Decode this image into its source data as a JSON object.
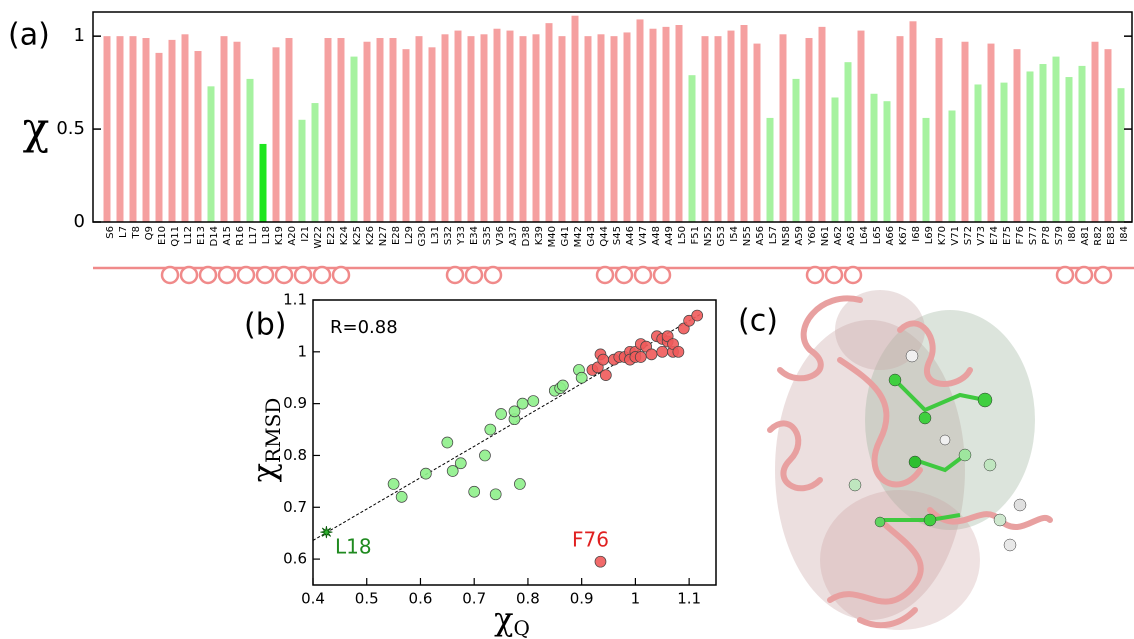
{
  "panels": [
    "(a)",
    "(b)",
    "(c)"
  ],
  "chart_data": [
    {
      "type": "bar",
      "y_label": "χ",
      "categories": [
        "S6",
        "L7",
        "T8",
        "Q9",
        "E10",
        "Q11",
        "L12",
        "E13",
        "D14",
        "A15",
        "R16",
        "L17",
        "L18",
        "K19",
        "A20",
        "I21",
        "W22",
        "E23",
        "K24",
        "K25",
        "K26",
        "N27",
        "E28",
        "L29",
        "G30",
        "L31",
        "S32",
        "Y33",
        "E34",
        "S35",
        "V36",
        "A37",
        "D38",
        "K39",
        "M40",
        "G41",
        "M42",
        "G43",
        "Q44",
        "S45",
        "A46",
        "V47",
        "A48",
        "A49",
        "L50",
        "F51",
        "N52",
        "G53",
        "I54",
        "N55",
        "A56",
        "L57",
        "N58",
        "A59",
        "Y60",
        "N61",
        "A62",
        "A63",
        "L64",
        "L65",
        "A66",
        "K67",
        "I68",
        "L69",
        "K70",
        "V71",
        "S72",
        "V73",
        "E74",
        "E75",
        "F76",
        "S77",
        "P78",
        "S79",
        "I80",
        "A81",
        "R82",
        "E83",
        "I84"
      ],
      "values": [
        1.0,
        1.0,
        1.0,
        0.99,
        0.91,
        0.98,
        1.01,
        0.92,
        0.73,
        1.0,
        0.97,
        0.77,
        0.42,
        0.94,
        0.99,
        0.55,
        0.64,
        0.99,
        0.99,
        0.89,
        0.97,
        0.99,
        0.99,
        0.93,
        1.0,
        0.94,
        1.01,
        1.03,
        1.0,
        1.01,
        1.04,
        1.03,
        1.0,
        1.01,
        1.07,
        1.0,
        1.11,
        1.0,
        1.01,
        1.0,
        1.02,
        1.09,
        1.04,
        1.05,
        1.06,
        0.79,
        1.0,
        1.0,
        1.03,
        1.06,
        0.96,
        0.56,
        1.01,
        0.77,
        0.99,
        1.05,
        0.67,
        0.86,
        1.03,
        0.69,
        0.65,
        1.0,
        1.08,
        0.56,
        0.99,
        0.6,
        0.97,
        0.74,
        0.96,
        0.75,
        0.93,
        0.81,
        0.85,
        0.89,
        0.78,
        0.84,
        0.97,
        0.93,
        0.72
      ],
      "colors": [
        "#f5a0a0",
        "#f5a0a0",
        "#f5a0a0",
        "#f5a0a0",
        "#f5a0a0",
        "#f5a0a0",
        "#f5a0a0",
        "#f5a0a0",
        "#a6f2a0",
        "#f5a0a0",
        "#f5a0a0",
        "#a6f2a0",
        "#1ee61e",
        "#f5a0a0",
        "#f5a0a0",
        "#a6f2a0",
        "#a6f2a0",
        "#f5a0a0",
        "#f5a0a0",
        "#a6f2a0",
        "#f5a0a0",
        "#f5a0a0",
        "#f5a0a0",
        "#f5a0a0",
        "#f5a0a0",
        "#f5a0a0",
        "#f5a0a0",
        "#f5a0a0",
        "#f5a0a0",
        "#f5a0a0",
        "#f5a0a0",
        "#f5a0a0",
        "#f5a0a0",
        "#f5a0a0",
        "#f5a0a0",
        "#f5a0a0",
        "#f5a0a0",
        "#f5a0a0",
        "#f5a0a0",
        "#f5a0a0",
        "#f5a0a0",
        "#f5a0a0",
        "#f5a0a0",
        "#f5a0a0",
        "#f5a0a0",
        "#a6f2a0",
        "#f5a0a0",
        "#f5a0a0",
        "#f5a0a0",
        "#f5a0a0",
        "#f5a0a0",
        "#a6f2a0",
        "#f5a0a0",
        "#a6f2a0",
        "#f5a0a0",
        "#f5a0a0",
        "#a6f2a0",
        "#a6f2a0",
        "#f5a0a0",
        "#a6f2a0",
        "#a6f2a0",
        "#f5a0a0",
        "#f5a0a0",
        "#a6f2a0",
        "#f5a0a0",
        "#a6f2a0",
        "#f5a0a0",
        "#a6f2a0",
        "#f5a0a0",
        "#a6f2a0",
        "#f5a0a0",
        "#a6f2a0",
        "#a6f2a0",
        "#a6f2a0",
        "#a6f2a0",
        "#a6f2a0",
        "#f5a0a0",
        "#f5a0a0",
        "#a6f2a0"
      ],
      "ylim": [
        0,
        1.13
      ],
      "yticks": [
        0,
        0.5,
        1
      ]
    },
    {
      "type": "scatter",
      "x_label": "χ",
      "x_label_sub": "Q",
      "y_label": "χ",
      "y_label_sub": "RMSD",
      "xlim": [
        0.4,
        1.15
      ],
      "xticks": [
        0.4,
        0.5,
        0.6,
        0.7,
        0.8,
        0.9,
        1,
        1.1
      ],
      "ylim": [
        0.55,
        1.1
      ],
      "yticks": [
        0.6,
        0.7,
        0.8,
        0.9,
        1,
        1.1
      ],
      "series": [
        {
          "color": "#8ef08a",
          "marker": "circle",
          "x": [
            0.55,
            0.565,
            0.61,
            0.65,
            0.66,
            0.675,
            0.7,
            0.72,
            0.73,
            0.74,
            0.75,
            0.775,
            0.775,
            0.785,
            0.79,
            0.81,
            0.85,
            0.86,
            0.865,
            0.895,
            0.9
          ],
          "y": [
            0.745,
            0.72,
            0.765,
            0.825,
            0.77,
            0.785,
            0.73,
            0.8,
            0.85,
            0.725,
            0.88,
            0.87,
            0.885,
            0.745,
            0.9,
            0.905,
            0.925,
            0.93,
            0.935,
            0.965,
            0.95
          ]
        },
        {
          "color": "#f05a5a",
          "marker": "circle",
          "x": [
            0.92,
            0.93,
            0.935,
            0.94,
            0.945,
            0.96,
            0.97,
            0.98,
            0.99,
            0.99,
            1.0,
            1.0,
            1.01,
            1.01,
            1.02,
            1.03,
            1.04,
            1.05,
            1.05,
            1.06,
            1.06,
            1.07,
            1.07,
            1.08,
            1.09,
            1.1,
            1.115,
            0.935
          ],
          "y": [
            0.965,
            0.97,
            0.995,
            0.985,
            0.955,
            0.985,
            0.99,
            0.99,
            1.0,
            0.985,
            1.0,
            0.99,
            1.015,
            0.99,
            1.01,
            0.995,
            1.03,
            1.025,
            1.0,
            1.02,
            1.03,
            1.0,
            1.015,
            1.0,
            1.045,
            1.06,
            1.07,
            0.595
          ]
        },
        {
          "color": "#2fb52f",
          "marker": "star",
          "x": [
            0.425
          ],
          "y": [
            0.652
          ]
        }
      ],
      "fit": {
        "x": [
          0.4,
          1.12
        ],
        "y": [
          0.636,
          1.072
        ]
      },
      "annotations": [
        {
          "text": "R=0.88",
          "color": "#000000"
        },
        {
          "text": "L18",
          "color": "#1f8a1f"
        },
        {
          "text": "F76",
          "color": "#e02020"
        }
      ]
    }
  ]
}
